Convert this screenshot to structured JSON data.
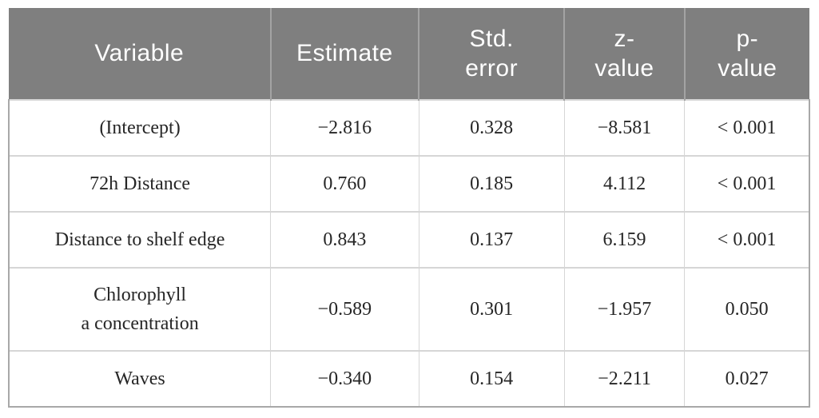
{
  "colors": {
    "header_bg": "#7f7f7f",
    "header_text": "#ffffff",
    "body_text": "#262626",
    "grid_line": "#d6d6d6",
    "outer_border": "#a8a8a8",
    "header_divider": "#a3a3a3",
    "page_bg": "#ffffff"
  },
  "table": {
    "columns": [
      "Variable",
      "Estimate",
      "Std.\nerror",
      "z-\nvalue",
      "p-\nvalue"
    ],
    "rows": [
      {
        "variable": "(Intercept)",
        "estimate": "−2.816",
        "std_error": "0.328",
        "z_value": "−8.581",
        "p_value": "< 0.001"
      },
      {
        "variable": "72h Distance",
        "estimate": "0.760",
        "std_error": "0.185",
        "z_value": "4.112",
        "p_value": "< 0.001"
      },
      {
        "variable": "Distance to shelf edge",
        "estimate": "0.843",
        "std_error": "0.137",
        "z_value": "6.159",
        "p_value": "< 0.001"
      },
      {
        "variable": "Chlorophyll\na concentration",
        "estimate": "−0.589",
        "std_error": "0.301",
        "z_value": "−1.957",
        "p_value": "0.050"
      },
      {
        "variable": "Waves",
        "estimate": "−0.340",
        "std_error": "0.154",
        "z_value": "−2.211",
        "p_value": "0.027"
      }
    ]
  }
}
